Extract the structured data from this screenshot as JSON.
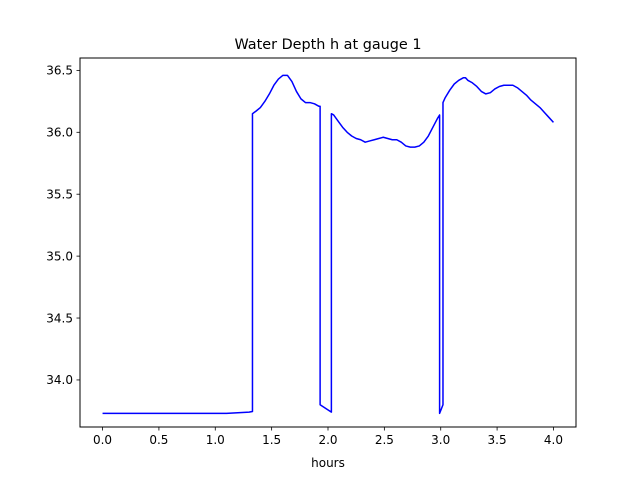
{
  "chart_data": {
    "type": "line",
    "title": "Water Depth h at gauge 1",
    "xlabel": "hours",
    "ylabel": "",
    "xlim": [
      -0.2,
      4.2
    ],
    "ylim": [
      33.62,
      36.6
    ],
    "xticks": [
      0.0,
      0.5,
      1.0,
      1.5,
      2.0,
      2.5,
      3.0,
      3.5,
      4.0
    ],
    "xtick_labels": [
      "0.0",
      "0.5",
      "1.0",
      "1.5",
      "2.0",
      "2.5",
      "3.0",
      "3.5",
      "4.0"
    ],
    "yticks": [
      34.0,
      34.5,
      35.0,
      35.5,
      36.0,
      36.5
    ],
    "ytick_labels": [
      "34.0",
      "34.5",
      "35.0",
      "35.5",
      "36.0",
      "36.5"
    ],
    "grid": false,
    "series": [
      {
        "color": "#0000ff",
        "x": [
          0.0,
          0.5,
          1.0,
          1.1,
          1.2,
          1.3,
          1.33,
          1.33,
          1.36,
          1.4,
          1.44,
          1.48,
          1.52,
          1.56,
          1.6,
          1.64,
          1.68,
          1.72,
          1.76,
          1.8,
          1.84,
          1.88,
          1.92,
          1.93,
          1.93,
          2.03,
          2.03,
          2.05,
          2.09,
          2.13,
          2.17,
          2.21,
          2.25,
          2.29,
          2.33,
          2.37,
          2.41,
          2.45,
          2.49,
          2.53,
          2.57,
          2.61,
          2.65,
          2.69,
          2.73,
          2.77,
          2.81,
          2.85,
          2.89,
          2.93,
          2.97,
          2.99,
          2.99,
          3.02,
          3.02,
          3.04,
          3.08,
          3.12,
          3.16,
          3.2,
          3.22,
          3.24,
          3.28,
          3.32,
          3.36,
          3.4,
          3.44,
          3.48,
          3.52,
          3.56,
          3.6,
          3.64,
          3.68,
          3.72,
          3.76,
          3.8,
          3.84,
          3.88,
          3.92,
          3.96,
          4.0
        ],
        "y": [
          33.73,
          33.73,
          33.73,
          33.73,
          33.735,
          33.74,
          33.745,
          36.15,
          36.17,
          36.2,
          36.25,
          36.31,
          36.38,
          36.43,
          36.46,
          36.46,
          36.41,
          36.33,
          36.27,
          36.24,
          36.24,
          36.23,
          36.21,
          36.21,
          33.8,
          33.74,
          36.15,
          36.14,
          36.09,
          36.04,
          36.0,
          35.97,
          35.95,
          35.94,
          35.92,
          35.93,
          35.94,
          35.95,
          35.96,
          35.95,
          35.94,
          35.94,
          35.92,
          35.89,
          35.88,
          35.88,
          35.89,
          35.92,
          35.97,
          36.04,
          36.11,
          36.14,
          33.73,
          33.8,
          36.24,
          36.28,
          36.34,
          36.39,
          36.42,
          36.44,
          36.44,
          36.42,
          36.4,
          36.37,
          36.33,
          36.31,
          36.32,
          36.35,
          36.37,
          36.38,
          36.38,
          36.38,
          36.36,
          36.33,
          36.3,
          36.26,
          36.23,
          36.2,
          36.16,
          36.12,
          36.08
        ]
      }
    ]
  }
}
